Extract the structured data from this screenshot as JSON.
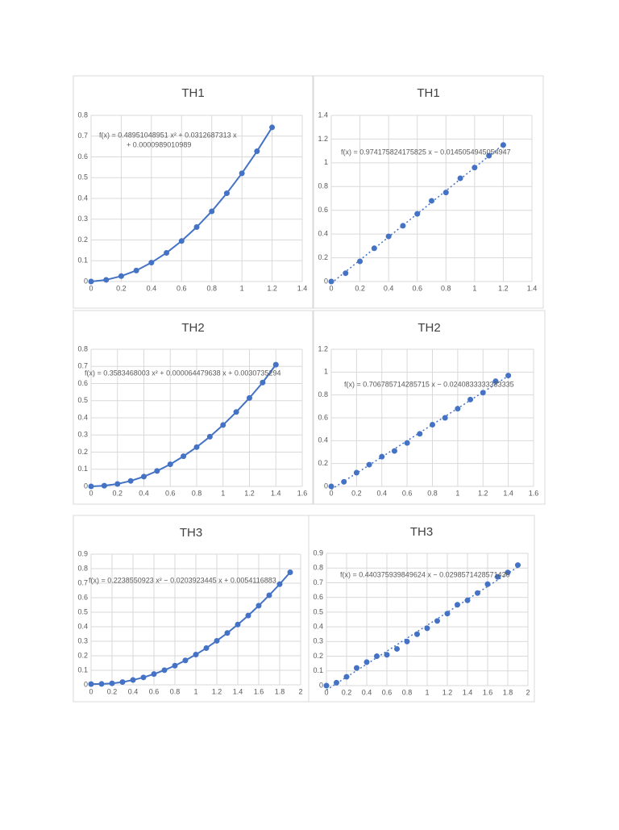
{
  "chart_data": [
    {
      "type": "line",
      "title": "TH1",
      "color": "#4472c4",
      "grid": true,
      "x": [
        0,
        0.1,
        0.2,
        0.3,
        0.4,
        0.5,
        0.6,
        0.7,
        0.8,
        0.9,
        1,
        1.1,
        1.2
      ],
      "values": [
        0,
        0.008,
        0.026,
        0.053,
        0.091,
        0.138,
        0.195,
        0.262,
        0.338,
        0.425,
        0.521,
        0.627,
        0.742
      ],
      "xlim": [
        0,
        1.4
      ],
      "xticks": [
        0,
        0.2,
        0.4,
        0.6,
        0.8,
        1,
        1.2,
        1.4
      ],
      "ylim": [
        0,
        0.8
      ],
      "yticks": [
        0,
        0.1,
        0.2,
        0.3,
        0.4,
        0.5,
        0.6,
        0.7,
        0.8
      ],
      "annotation": [
        "f(x) = 0.48951048951 x² + 0.0312687313 x",
        "+ 0.0000989010989"
      ]
    },
    {
      "type": "scatter",
      "title": "TH1",
      "color": "#4472c4",
      "grid": true,
      "x": [
        0,
        0.1,
        0.2,
        0.3,
        0.4,
        0.5,
        0.6,
        0.7,
        0.8,
        0.9,
        1,
        1.1,
        1.2
      ],
      "values": [
        0,
        0.07,
        0.17,
        0.28,
        0.38,
        0.47,
        0.57,
        0.68,
        0.75,
        0.87,
        0.96,
        1.06,
        1.15
      ],
      "xlim": [
        0,
        1.4
      ],
      "xticks": [
        0,
        0.2,
        0.4,
        0.6,
        0.8,
        1,
        1.2,
        1.4
      ],
      "ylim": [
        0,
        1.4
      ],
      "yticks": [
        0,
        0.2,
        0.4,
        0.6,
        0.8,
        1,
        1.2,
        1.4
      ],
      "annotation": [
        "f(x) = 0.974175824175825 x − 0.0145054945054947"
      ]
    },
    {
      "type": "line",
      "title": "TH2",
      "color": "#4472c4",
      "grid": true,
      "x": [
        0,
        0.1,
        0.2,
        0.3,
        0.4,
        0.5,
        0.6,
        0.7,
        0.8,
        0.9,
        1,
        1.1,
        1.2,
        1.3,
        1.4
      ],
      "values": [
        0,
        0.004,
        0.014,
        0.032,
        0.057,
        0.09,
        0.129,
        0.176,
        0.229,
        0.29,
        0.358,
        0.434,
        0.516,
        0.606,
        0.71
      ],
      "xlim": [
        0,
        1.6
      ],
      "xticks": [
        0,
        0.2,
        0.4,
        0.6,
        0.8,
        1,
        1.2,
        1.4,
        1.6
      ],
      "ylim": [
        0,
        0.8
      ],
      "yticks": [
        0,
        0.1,
        0.2,
        0.3,
        0.4,
        0.5,
        0.6,
        0.7,
        0.8
      ],
      "annotation": [
        "f(x) = 0.3583468003 x² + 0.000064479638 x + 0.0030735294"
      ]
    },
    {
      "type": "scatter",
      "title": "TH2",
      "color": "#4472c4",
      "grid": true,
      "x": [
        0,
        0.1,
        0.2,
        0.3,
        0.4,
        0.5,
        0.6,
        0.7,
        0.8,
        0.9,
        1,
        1.1,
        1.2,
        1.3,
        1.4
      ],
      "values": [
        0,
        0.04,
        0.12,
        0.19,
        0.26,
        0.31,
        0.38,
        0.46,
        0.54,
        0.6,
        0.68,
        0.76,
        0.82,
        0.92,
        0.97
      ],
      "xlim": [
        0,
        1.6
      ],
      "xticks": [
        0,
        0.2,
        0.4,
        0.6,
        0.8,
        1,
        1.2,
        1.4,
        1.6
      ],
      "ylim": [
        0,
        1.2
      ],
      "yticks": [
        0,
        0.2,
        0.4,
        0.6,
        0.8,
        1,
        1.2
      ],
      "annotation": [
        "f(x) = 0.706785714285715 x − 0.0240833333333335"
      ]
    },
    {
      "type": "line",
      "title": "TH3",
      "color": "#4472c4",
      "grid": true,
      "x": [
        0,
        0.1,
        0.2,
        0.3,
        0.4,
        0.5,
        0.6,
        0.7,
        0.8,
        0.9,
        1,
        1.1,
        1.2,
        1.3,
        1.4,
        1.5,
        1.6,
        1.7,
        1.8,
        1.9
      ],
      "values": [
        0.005,
        0.006,
        0.01,
        0.019,
        0.033,
        0.051,
        0.074,
        0.101,
        0.132,
        0.168,
        0.208,
        0.253,
        0.303,
        0.357,
        0.415,
        0.477,
        0.545,
        0.617,
        0.693,
        0.775
      ],
      "xlim": [
        0,
        2
      ],
      "xticks": [
        0,
        0.2,
        0.4,
        0.6,
        0.8,
        1,
        1.2,
        1.4,
        1.6,
        1.8,
        2
      ],
      "ylim": [
        0,
        0.9
      ],
      "yticks": [
        0,
        0.1,
        0.2,
        0.3,
        0.4,
        0.5,
        0.6,
        0.7,
        0.8,
        0.9
      ],
      "annotation": [
        "f(x) = 0.2238550923 x² − 0.0203923445 x + 0.0054116883"
      ]
    },
    {
      "type": "scatter",
      "title": "TH3",
      "color": "#4472c4",
      "grid": true,
      "x": [
        0,
        0.1,
        0.2,
        0.3,
        0.4,
        0.5,
        0.6,
        0.7,
        0.8,
        0.9,
        1,
        1.1,
        1.2,
        1.3,
        1.4,
        1.5,
        1.6,
        1.7,
        1.8,
        1.9
      ],
      "values": [
        0,
        0.02,
        0.06,
        0.12,
        0.16,
        0.2,
        0.21,
        0.25,
        0.3,
        0.35,
        0.39,
        0.44,
        0.49,
        0.55,
        0.58,
        0.63,
        0.69,
        0.74,
        0.77,
        0.82
      ],
      "xlim": [
        0,
        2
      ],
      "xticks": [
        0,
        0.2,
        0.4,
        0.6,
        0.8,
        1,
        1.2,
        1.4,
        1.6,
        1.8,
        2
      ],
      "ylim": [
        0,
        0.9
      ],
      "yticks": [
        0,
        0.1,
        0.2,
        0.3,
        0.4,
        0.5,
        0.6,
        0.7,
        0.8,
        0.9
      ],
      "annotation": [
        "f(x) = 0.440375939849624 x − 0.0298571428571430"
      ]
    }
  ]
}
